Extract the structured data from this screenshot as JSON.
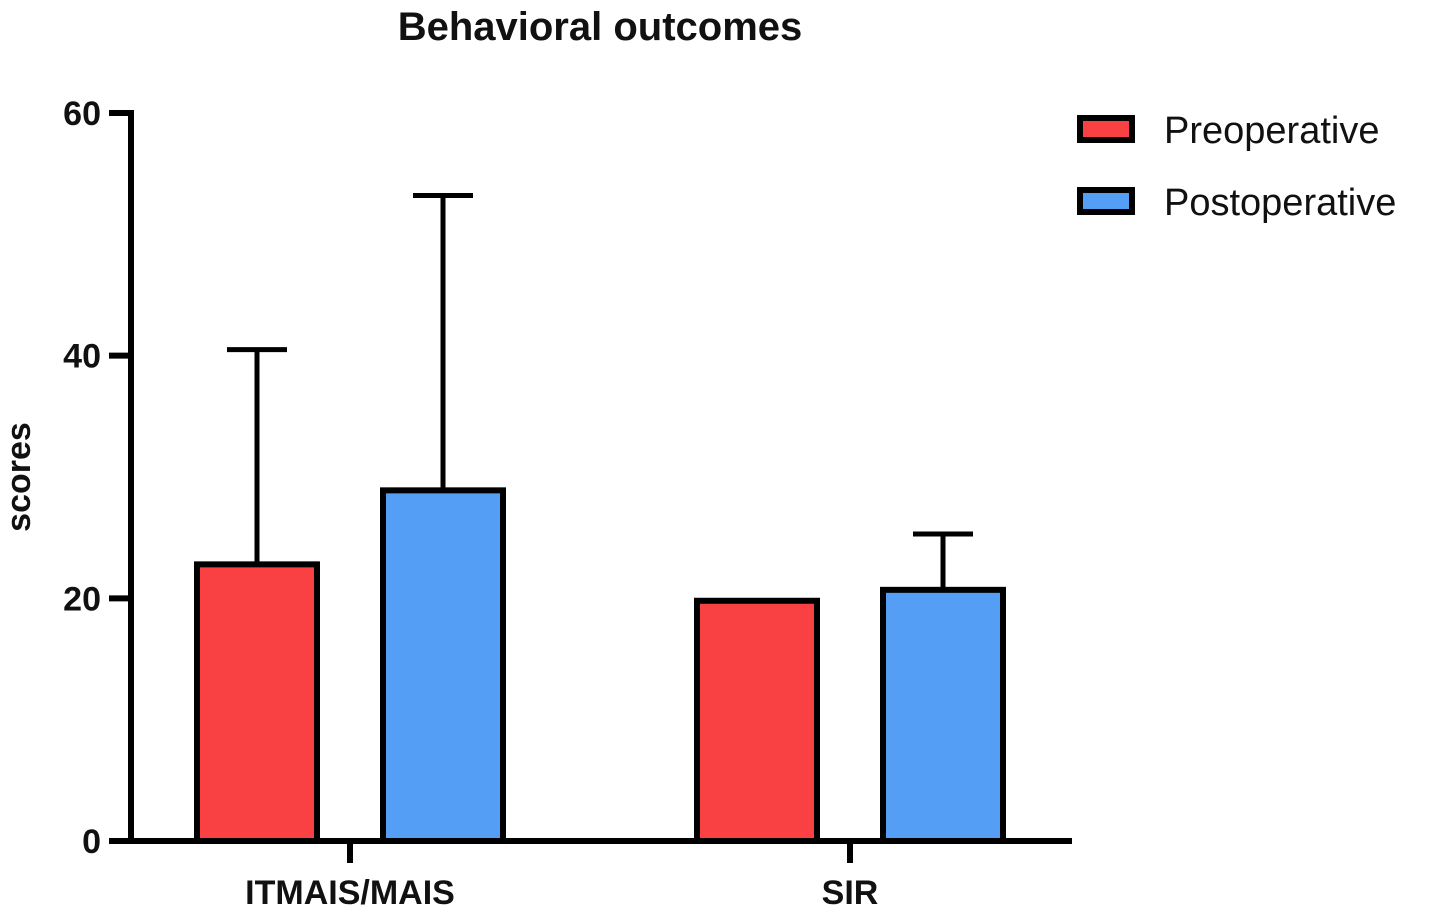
{
  "chart_data": {
    "type": "bar",
    "title": "Behavioral outcomes",
    "xlabel": "",
    "ylabel": "scores",
    "ylim": [
      0,
      60
    ],
    "yticks": [
      0,
      20,
      40,
      60
    ],
    "grid": false,
    "legend_position": "top-right",
    "categories": [
      "ITMAIS/MAIS",
      "SIR"
    ],
    "series": [
      {
        "name": "Preoperative",
        "color": "#F94144",
        "values": [
          22.8,
          19.8
        ],
        "error_upper": [
          40.5,
          null
        ]
      },
      {
        "name": "Postoperative",
        "color": "#559EF5",
        "values": [
          28.9,
          20.7
        ],
        "error_upper": [
          53.2,
          25.3
        ]
      }
    ]
  }
}
